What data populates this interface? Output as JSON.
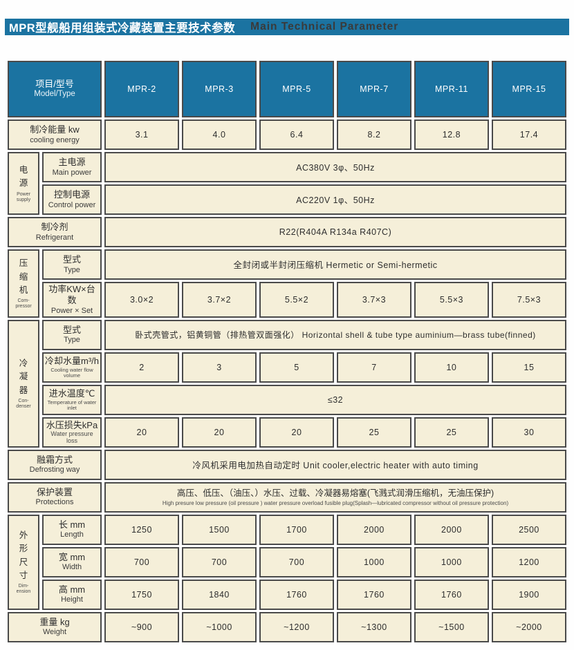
{
  "colors": {
    "header_blue": "#1b73a1",
    "cell_cream": "#f5efd9",
    "border_gray": "#4a4a4a"
  },
  "title": {
    "zh": "MPR型舰船用组装式冷藏装置主要技术参数",
    "en": "Main Technical Parameter"
  },
  "header": {
    "label_zh": "项目/型号",
    "label_en": "Model/Type",
    "models": [
      "MPR-2",
      "MPR-3",
      "MPR-5",
      "MPR-7",
      "MPR-11",
      "MPR-15"
    ]
  },
  "groups": {
    "power": {
      "zh": "电\n源",
      "en": "Power\nsupply"
    },
    "compressor": {
      "zh": "压\n缩\n机",
      "en": "Com-\npressor"
    },
    "condenser": {
      "zh": "冷\n凝\n器",
      "en": "Con-\ndenser"
    },
    "dimension": {
      "zh": "外\n形\n尺\n寸",
      "en": "Dim-\nension"
    }
  },
  "rows": {
    "cooling_energy": {
      "zh": "制冷能量 kw",
      "en": "cooling energy",
      "values": [
        "3.1",
        "4.0",
        "6.4",
        "8.2",
        "12.8",
        "17.4"
      ]
    },
    "main_power": {
      "zh": "主电源",
      "en": "Main power",
      "value": "AC380V 3φ、50Hz"
    },
    "control_power": {
      "zh": "控制电源",
      "en": "Control power",
      "value": "AC220V 1φ、50Hz"
    },
    "refrigerant": {
      "zh": "制冷剂",
      "en": "Refrigerant",
      "value": "R22(R404A R134a R407C)"
    },
    "comp_type": {
      "zh": "型式",
      "en": "Type",
      "value": "全封闭或半封闭压缩机  Hermetic or Semi-hermetic"
    },
    "power_set": {
      "zh": "功率KW×台数",
      "en": "Power × Set",
      "values": [
        "3.0×2",
        "3.7×2",
        "5.5×2",
        "3.7×3",
        "5.5×3",
        "7.5×3"
      ]
    },
    "cond_type": {
      "zh": "型式",
      "en": "Type",
      "value": "卧式壳管式，铝黄铜管（排热管双面强化）  Horizontal shell & tube type  auminium—brass tube(finned)"
    },
    "cooling_water": {
      "zh": "冷却水量m³/h",
      "en": "Cooling water flow volume",
      "values": [
        "2",
        "3",
        "5",
        "7",
        "10",
        "15"
      ]
    },
    "inlet_temp": {
      "zh": "进水温度℃",
      "en": "Temperature of water inlet",
      "value": "≤32"
    },
    "pressure_loss": {
      "zh": "水压损失kPa",
      "en": "Water pressure loss",
      "values": [
        "20",
        "20",
        "20",
        "25",
        "25",
        "30"
      ]
    },
    "defrost": {
      "zh": "融霜方式",
      "en": "Defrosting way",
      "value": "冷风机采用电加热自动定时 Unit cooler,electric heater with auto timing"
    },
    "protections": {
      "zh": "保护装置",
      "en": "Protections",
      "value_zh": "高压、低压、（油压、）水压、过载、冷凝器易熔塞(飞溅式润滑压缩机，无油压保护)",
      "value_en": "High presure  low pressure  (oil pressure )  water pressure  overload  fusible plug(Splash—lubricated compressor without oil pressure protection)"
    },
    "length": {
      "zh": "长 mm",
      "en": "Length",
      "values": [
        "1250",
        "1500",
        "1700",
        "2000",
        "2000",
        "2500"
      ]
    },
    "width": {
      "zh": "宽 mm",
      "en": "Width",
      "values": [
        "700",
        "700",
        "700",
        "1000",
        "1000",
        "1200"
      ]
    },
    "height": {
      "zh": "高 mm",
      "en": "Height",
      "values": [
        "1750",
        "1840",
        "1760",
        "1760",
        "1760",
        "1900"
      ]
    },
    "weight": {
      "zh": "重量 kg",
      "en": "Weight",
      "values": [
        "~900",
        "~1000",
        "~1200",
        "~1300",
        "~1500",
        "~2000"
      ]
    }
  }
}
